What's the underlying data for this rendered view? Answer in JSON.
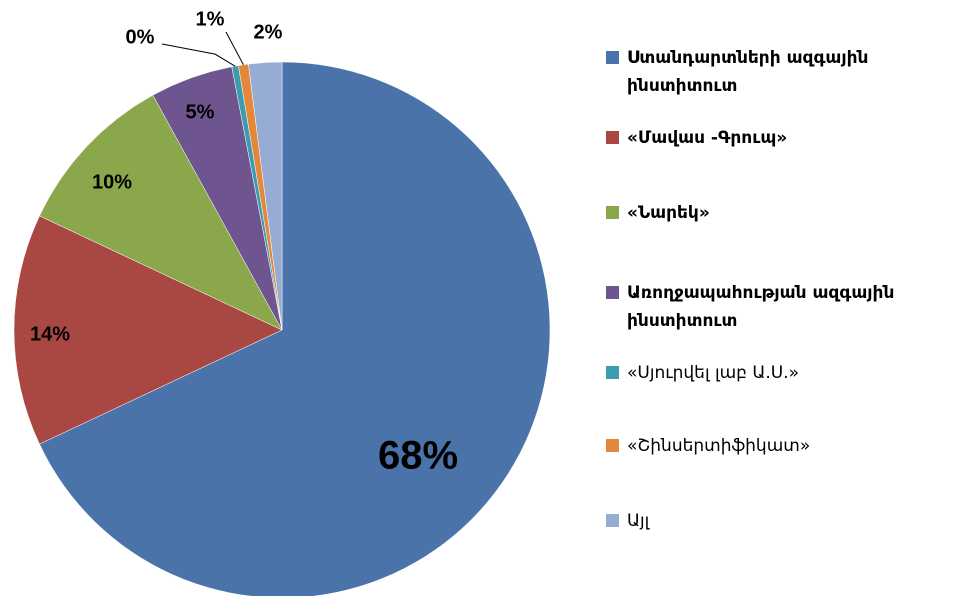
{
  "chart_data": {
    "type": "pie",
    "categories": [
      "Ստանդարտների ազգային ինստիտուտ",
      "«Մավաս -Գրուպ»",
      "«Նարեկ»",
      "Առողջապահության ազգային ինստիտուտ",
      "«Սյուրվել լաբ Ա.Ս.»",
      "«Շինսերտիֆիկատ»",
      "Այլ"
    ],
    "values": [
      68,
      14,
      10,
      5,
      0.4,
      0.6,
      2
    ],
    "value_labels": [
      "68%",
      "14%",
      "10%",
      "5%",
      "0%",
      "1%",
      "2%"
    ],
    "colors": [
      "#4a73a9",
      "#a94743",
      "#8aa84b",
      "#6e558f",
      "#3d9bb0",
      "#e3873a",
      "#97acd4"
    ],
    "legend": "right"
  }
}
